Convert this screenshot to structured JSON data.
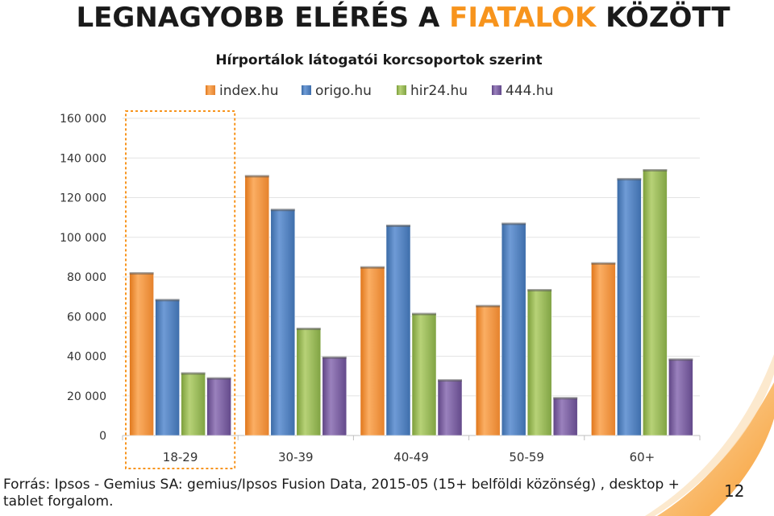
{
  "headline": {
    "part1": "LEGNAGYOBB ELÉRÉS A ",
    "accent": "FIATALOK",
    "part2": " KÖZÖTT"
  },
  "source": "Forrás: Ipsos - Gemius SA: gemius/Ipsos Fusion Data, 2015-05 (15+ belföldi közönség) , desktop + tablet forgalom.",
  "page_number": "12",
  "colors": {
    "accent": "#f7941d"
  },
  "chart_data": {
    "type": "bar",
    "title": "Hírportálok látogatói korcsoportok szerint",
    "xlabel": "",
    "ylabel": "",
    "categories": [
      "18-29",
      "30-39",
      "40-49",
      "50-59",
      "60+"
    ],
    "series": [
      {
        "name": "index.hu",
        "color": "#f79646",
        "values": [
          82000,
          131000,
          85000,
          65500,
          87000
        ]
      },
      {
        "name": "origo.hu",
        "color": "#4f81bd",
        "values": [
          68500,
          114000,
          106000,
          107000,
          129500
        ]
      },
      {
        "name": "hir24.hu",
        "color": "#9bbb59",
        "values": [
          31500,
          54000,
          61500,
          73500,
          134000
        ]
      },
      {
        "name": "444.hu",
        "color": "#8064a2",
        "values": [
          29000,
          39500,
          28000,
          19000,
          38500
        ]
      }
    ],
    "ylim": [
      0,
      160000
    ],
    "yticks": [
      0,
      20000,
      40000,
      60000,
      80000,
      100000,
      120000,
      140000,
      160000
    ],
    "ytick_labels": [
      "0",
      "20 000",
      "40 000",
      "60 000",
      "80 000",
      "100 000",
      "120 000",
      "140 000",
      "160 000"
    ],
    "grid": true,
    "legend": "top",
    "highlight_category": "18-29"
  }
}
